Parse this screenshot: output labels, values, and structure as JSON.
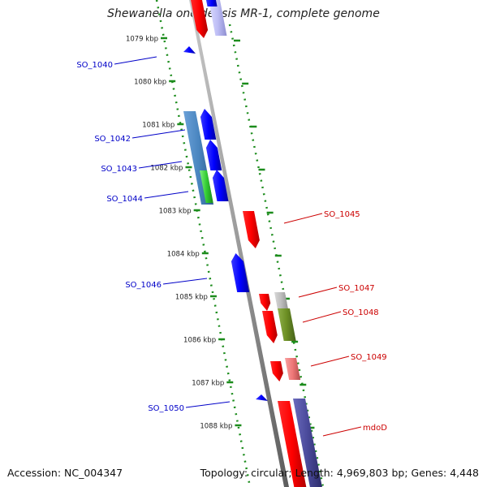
{
  "title": "Shewanella oneidensis MR-1, complete genome",
  "footer": {
    "accession": "Accession: NC_004347",
    "summary": "Topology: circular; Length: 4,969,803 bp; Genes: 4,448"
  },
  "colors": {
    "axis": "#8c8c8c",
    "ruler": "#1c8c1c",
    "left_label": "#0000c8",
    "right_label": "#cc0000",
    "tick_text": "#222222"
  },
  "ruler_ticks": [
    {
      "kbp": 1079,
      "label": "1079 kbp"
    },
    {
      "kbp": 1080,
      "label": "1080 kbp"
    },
    {
      "kbp": 1081,
      "label": "1081 kbp"
    },
    {
      "kbp": 1082,
      "label": "1082 kbp"
    },
    {
      "kbp": 1083,
      "label": "1083 kbp"
    },
    {
      "kbp": 1084,
      "label": "1084 kbp"
    },
    {
      "kbp": 1085,
      "label": "1085 kbp"
    },
    {
      "kbp": 1086,
      "label": "1086 kbp"
    },
    {
      "kbp": 1087,
      "label": "1087 kbp"
    },
    {
      "kbp": 1088,
      "label": "1088 kbp"
    }
  ],
  "left_labels": [
    {
      "text": "SO_1040",
      "kbp": 1079.55
    },
    {
      "text": "SO_1042",
      "kbp": 1081.35
    },
    {
      "text": "SO_1043",
      "kbp": 1082.05
    },
    {
      "text": "SO_1044",
      "kbp": 1082.75
    },
    {
      "text": "SO_1046",
      "kbp": 1084.75
    },
    {
      "text": "SO_1050",
      "kbp": 1087.65
    }
  ],
  "right_labels": [
    {
      "text": "SO_1045",
      "kbp": 1083.15
    },
    {
      "text": "SO_1047",
      "kbp": 1085.05
    },
    {
      "text": "SO_1048",
      "kbp": 1085.6
    },
    {
      "text": "SO_1049",
      "kbp": 1086.45
    },
    {
      "text": "mdoD",
      "kbp": 1088.15
    }
  ]
}
